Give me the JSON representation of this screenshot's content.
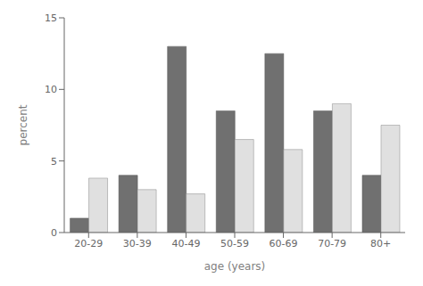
{
  "chart_data": {
    "type": "bar",
    "xlabel": "age (years)",
    "ylabel": "percent",
    "categories": [
      "20-29",
      "30-39",
      "40-49",
      "50-59",
      "60-69",
      "70-79",
      "80+"
    ],
    "series": [
      {
        "color": "#707070",
        "values": [
          1.0,
          4.0,
          13.0,
          8.5,
          12.5,
          8.5,
          4.0
        ]
      },
      {
        "color": "#e0e0e0",
        "values": [
          3.8,
          3.0,
          2.7,
          6.5,
          5.8,
          9.0,
          7.5
        ]
      }
    ],
    "ylim": [
      0,
      15
    ],
    "yticks": [
      0,
      5,
      10,
      15
    ],
    "grid": false
  }
}
